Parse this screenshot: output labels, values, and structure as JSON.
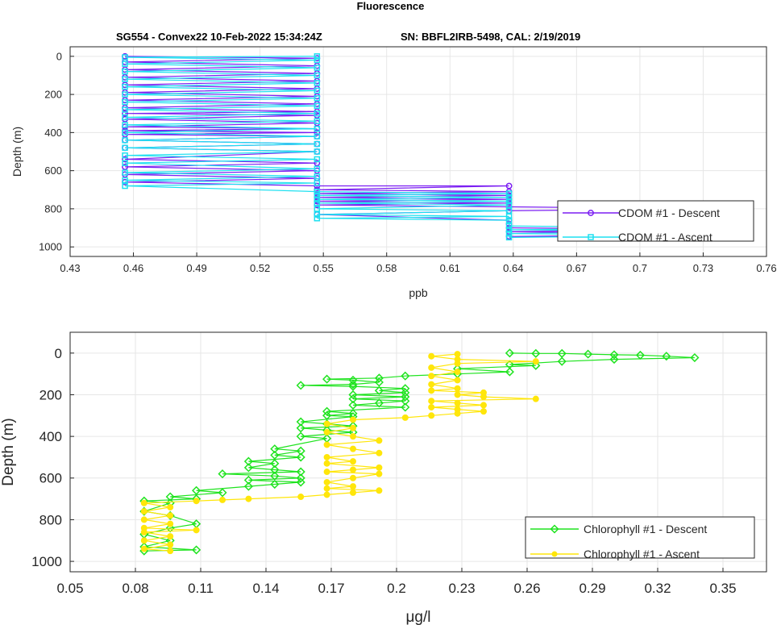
{
  "figure": {
    "title": "Fluorescence",
    "subtitle_left": "SG554 - Convex22 10-Feb-2022 15:34:24Z",
    "subtitle_right": "SN: BBFL2IRB-5498, CAL: 2/19/2019"
  },
  "chart_data": [
    {
      "type": "line",
      "xlabel": "ppb",
      "ylabel": "Depth (m)",
      "xlim": [
        0.43,
        0.76
      ],
      "ylim": [
        1050,
        -50
      ],
      "y_reversed": true,
      "grid": true,
      "legend_position": "bottom-right",
      "xticks": [
        "0.43",
        "0.46",
        "0.49",
        "0.52",
        "0.55",
        "0.58",
        "0.61",
        "0.64",
        "0.67",
        "0.7",
        "0.73",
        "0.76"
      ],
      "yticks": [
        "0",
        "200",
        "400",
        "600",
        "800",
        "1000"
      ],
      "series": [
        {
          "name": "CDOM #1 - Descent",
          "color": "#7b1ff2",
          "marker": "circle",
          "points": [
            [
              0.456,
              0
            ],
            [
              0.547,
              10
            ],
            [
              0.456,
              30
            ],
            [
              0.547,
              50
            ],
            [
              0.456,
              70
            ],
            [
              0.547,
              90
            ],
            [
              0.456,
              110
            ],
            [
              0.547,
              130
            ],
            [
              0.456,
              150
            ],
            [
              0.547,
              170
            ],
            [
              0.456,
              190
            ],
            [
              0.547,
              210
            ],
            [
              0.456,
              230
            ],
            [
              0.547,
              250
            ],
            [
              0.456,
              270
            ],
            [
              0.547,
              290
            ],
            [
              0.456,
              300
            ],
            [
              0.547,
              310
            ],
            [
              0.456,
              330
            ],
            [
              0.547,
              350
            ],
            [
              0.456,
              370
            ],
            [
              0.547,
              380
            ],
            [
              0.456,
              390
            ],
            [
              0.547,
              400
            ],
            [
              0.456,
              410
            ],
            [
              0.547,
              420
            ],
            [
              0.456,
              440
            ],
            [
              0.547,
              460
            ],
            [
              0.456,
              480
            ],
            [
              0.547,
              500
            ],
            [
              0.456,
              540
            ],
            [
              0.547,
              560
            ],
            [
              0.456,
              580
            ],
            [
              0.547,
              600
            ],
            [
              0.456,
              620
            ],
            [
              0.547,
              640
            ],
            [
              0.456,
              660
            ],
            [
              0.547,
              680
            ],
            [
              0.638,
              680
            ],
            [
              0.547,
              700
            ],
            [
              0.638,
              710
            ],
            [
              0.547,
              720
            ],
            [
              0.638,
              730
            ],
            [
              0.547,
              740
            ],
            [
              0.638,
              750
            ],
            [
              0.547,
              760
            ],
            [
              0.638,
              770
            ],
            [
              0.547,
              780
            ],
            [
              0.638,
              790
            ],
            [
              0.73,
              800
            ],
            [
              0.638,
              810
            ],
            [
              0.547,
              830
            ],
            [
              0.638,
              860
            ],
            [
              0.638,
              880
            ],
            [
              0.638,
              900
            ],
            [
              0.73,
              910
            ],
            [
              0.638,
              920
            ],
            [
              0.73,
              935
            ],
            [
              0.638,
              945
            ],
            [
              0.73,
              950
            ]
          ]
        },
        {
          "name": "CDOM #1 - Ascent",
          "color": "#1ee0f0",
          "marker": "square",
          "points": [
            [
              0.638,
              950
            ],
            [
              0.73,
              940
            ],
            [
              0.638,
              930
            ],
            [
              0.73,
              920
            ],
            [
              0.638,
              910
            ],
            [
              0.73,
              900
            ],
            [
              0.638,
              890
            ],
            [
              0.638,
              860
            ],
            [
              0.547,
              850
            ],
            [
              0.638,
              840
            ],
            [
              0.547,
              830
            ],
            [
              0.638,
              810
            ],
            [
              0.547,
              800
            ],
            [
              0.638,
              780
            ],
            [
              0.547,
              770
            ],
            [
              0.638,
              760
            ],
            [
              0.547,
              750
            ],
            [
              0.638,
              740
            ],
            [
              0.547,
              730
            ],
            [
              0.638,
              720
            ],
            [
              0.547,
              710
            ],
            [
              0.456,
              680
            ],
            [
              0.547,
              665
            ],
            [
              0.456,
              650
            ],
            [
              0.547,
              630
            ],
            [
              0.456,
              610
            ],
            [
              0.547,
              590
            ],
            [
              0.456,
              560
            ],
            [
              0.547,
              540
            ],
            [
              0.456,
              520
            ],
            [
              0.547,
              500
            ],
            [
              0.456,
              480
            ],
            [
              0.547,
              460
            ],
            [
              0.456,
              440
            ],
            [
              0.547,
              420
            ],
            [
              0.456,
              400
            ],
            [
              0.547,
              380
            ],
            [
              0.456,
              360
            ],
            [
              0.547,
              340
            ],
            [
              0.456,
              320
            ],
            [
              0.547,
              300
            ],
            [
              0.456,
              280
            ],
            [
              0.547,
              260
            ],
            [
              0.456,
              240
            ],
            [
              0.547,
              220
            ],
            [
              0.456,
              200
            ],
            [
              0.547,
              180
            ],
            [
              0.456,
              160
            ],
            [
              0.547,
              140
            ],
            [
              0.456,
              120
            ],
            [
              0.547,
              100
            ],
            [
              0.456,
              80
            ],
            [
              0.547,
              60
            ],
            [
              0.456,
              40
            ],
            [
              0.547,
              20
            ],
            [
              0.456,
              5
            ],
            [
              0.547,
              0
            ]
          ]
        }
      ]
    },
    {
      "type": "line",
      "xlabel": "μg/l",
      "ylabel": "Depth (m)",
      "xlim": [
        0.05,
        0.37
      ],
      "ylim": [
        1050,
        -100
      ],
      "y_reversed": true,
      "grid": true,
      "legend_position": "bottom-right",
      "xticks": [
        "0.05",
        "0.08",
        "0.11",
        "0.14",
        "0.17",
        "0.2",
        "0.23",
        "0.26",
        "0.29",
        "0.32",
        "0.35"
      ],
      "yticks": [
        "0",
        "200",
        "400",
        "600",
        "800",
        "1000"
      ],
      "series": [
        {
          "name": "Chlorophyll #1 - Descent",
          "color": "#1fe31f",
          "marker": "diamond",
          "points": [
            [
              0.252,
              0
            ],
            [
              0.264,
              2
            ],
            [
              0.276,
              2
            ],
            [
              0.288,
              5
            ],
            [
              0.3,
              8
            ],
            [
              0.312,
              10
            ],
            [
              0.324,
              15
            ],
            [
              0.337,
              22
            ],
            [
              0.3,
              30
            ],
            [
              0.276,
              40
            ],
            [
              0.252,
              55
            ],
            [
              0.264,
              60
            ],
            [
              0.228,
              75
            ],
            [
              0.252,
              90
            ],
            [
              0.228,
              100
            ],
            [
              0.204,
              110
            ],
            [
              0.192,
              120
            ],
            [
              0.168,
              125
            ],
            [
              0.18,
              130
            ],
            [
              0.192,
              140
            ],
            [
              0.18,
              150
            ],
            [
              0.156,
              155
            ],
            [
              0.18,
              160
            ],
            [
              0.204,
              170
            ],
            [
              0.192,
              180
            ],
            [
              0.204,
              190
            ],
            [
              0.18,
              200
            ],
            [
              0.204,
              210
            ],
            [
              0.18,
              220
            ],
            [
              0.204,
              230
            ],
            [
              0.192,
              240
            ],
            [
              0.18,
              250
            ],
            [
              0.204,
              260
            ],
            [
              0.168,
              280
            ],
            [
              0.18,
              290
            ],
            [
              0.168,
              300
            ],
            [
              0.18,
              305
            ],
            [
              0.156,
              330
            ],
            [
              0.168,
              340
            ],
            [
              0.18,
              350
            ],
            [
              0.156,
              360
            ],
            [
              0.168,
              370
            ],
            [
              0.18,
              380
            ],
            [
              0.156,
              400
            ],
            [
              0.168,
              410
            ],
            [
              0.144,
              460
            ],
            [
              0.156,
              470
            ],
            [
              0.144,
              490
            ],
            [
              0.156,
              500
            ],
            [
              0.132,
              520
            ],
            [
              0.144,
              530
            ],
            [
              0.132,
              550
            ],
            [
              0.144,
              560
            ],
            [
              0.156,
              570
            ],
            [
              0.12,
              580
            ],
            [
              0.144,
              590
            ],
            [
              0.156,
              600
            ],
            [
              0.132,
              610
            ],
            [
              0.156,
              620
            ],
            [
              0.144,
              630
            ],
            [
              0.132,
              640
            ],
            [
              0.108,
              660
            ],
            [
              0.12,
              670
            ],
            [
              0.096,
              690
            ],
            [
              0.108,
              700
            ],
            [
              0.084,
              710
            ],
            [
              0.096,
              720
            ],
            [
              0.084,
              760
            ],
            [
              0.096,
              780
            ],
            [
              0.108,
              820
            ],
            [
              0.096,
              840
            ],
            [
              0.084,
              870
            ],
            [
              0.096,
              900
            ],
            [
              0.084,
              930
            ],
            [
              0.108,
              945
            ],
            [
              0.084,
              950
            ]
          ]
        },
        {
          "name": "Chlorophyll #1 - Ascent",
          "color": "#ffe60a",
          "marker": "dot",
          "points": [
            [
              0.096,
              950
            ],
            [
              0.084,
              940
            ],
            [
              0.096,
              920
            ],
            [
              0.084,
              900
            ],
            [
              0.096,
              880
            ],
            [
              0.084,
              860
            ],
            [
              0.108,
              850
            ],
            [
              0.084,
              840
            ],
            [
              0.096,
              820
            ],
            [
              0.084,
              800
            ],
            [
              0.096,
              780
            ],
            [
              0.084,
              760
            ],
            [
              0.096,
              740
            ],
            [
              0.084,
              720
            ],
            [
              0.108,
              710
            ],
            [
              0.12,
              705
            ],
            [
              0.132,
              700
            ],
            [
              0.156,
              690
            ],
            [
              0.168,
              680
            ],
            [
              0.18,
              670
            ],
            [
              0.192,
              660
            ],
            [
              0.168,
              650
            ],
            [
              0.18,
              640
            ],
            [
              0.168,
              620
            ],
            [
              0.18,
              600
            ],
            [
              0.192,
              580
            ],
            [
              0.168,
              570
            ],
            [
              0.18,
              560
            ],
            [
              0.192,
              550
            ],
            [
              0.168,
              530
            ],
            [
              0.18,
              520
            ],
            [
              0.168,
              500
            ],
            [
              0.192,
              480
            ],
            [
              0.18,
              460
            ],
            [
              0.168,
              440
            ],
            [
              0.192,
              420
            ],
            [
              0.18,
              400
            ],
            [
              0.168,
              380
            ],
            [
              0.18,
              360
            ],
            [
              0.168,
              340
            ],
            [
              0.18,
              320
            ],
            [
              0.204,
              310
            ],
            [
              0.216,
              300
            ],
            [
              0.228,
              290
            ],
            [
              0.24,
              280
            ],
            [
              0.228,
              270
            ],
            [
              0.216,
              260
            ],
            [
              0.24,
              250
            ],
            [
              0.228,
              240
            ],
            [
              0.216,
              230
            ],
            [
              0.264,
              220
            ],
            [
              0.24,
              210
            ],
            [
              0.228,
              200
            ],
            [
              0.24,
              190
            ],
            [
              0.216,
              180
            ],
            [
              0.228,
              170
            ],
            [
              0.216,
              150
            ],
            [
              0.228,
              130
            ],
            [
              0.216,
              110
            ],
            [
              0.228,
              90
            ],
            [
              0.216,
              70
            ],
            [
              0.228,
              50
            ],
            [
              0.264,
              40
            ],
            [
              0.228,
              30
            ],
            [
              0.216,
              15
            ],
            [
              0.228,
              5
            ]
          ]
        }
      ]
    }
  ]
}
